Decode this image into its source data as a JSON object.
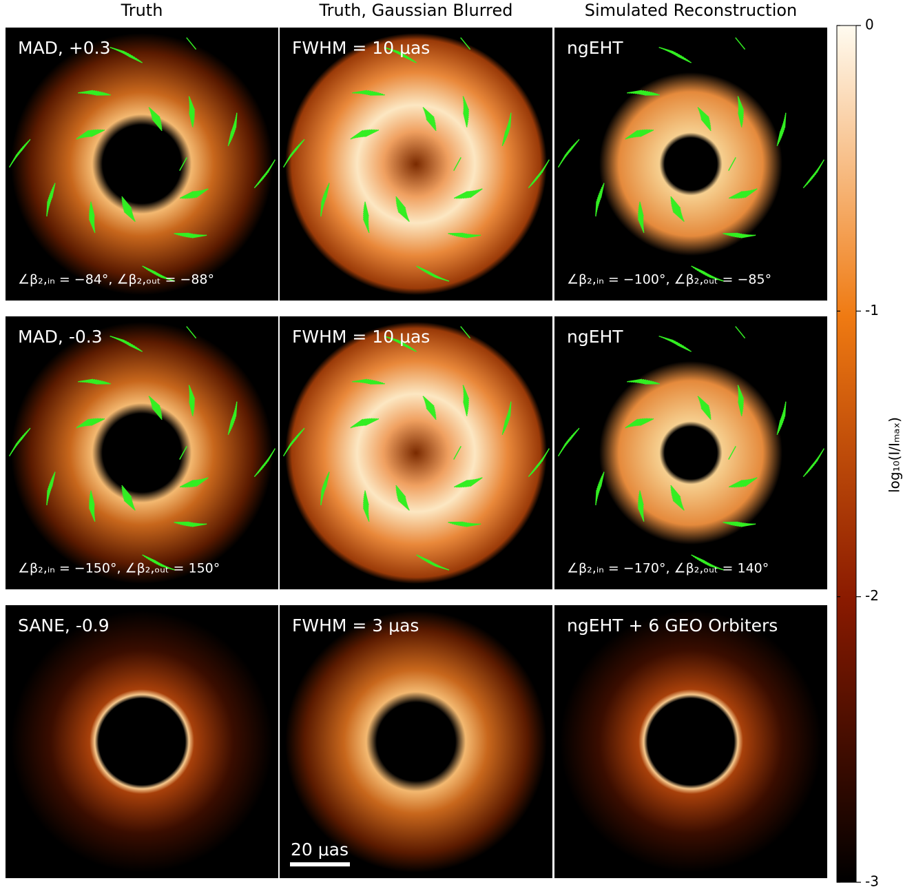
{
  "columns": [
    "Truth",
    "Truth, Gaussian Blurred",
    "Simulated Reconstruction"
  ],
  "rows": [
    {
      "panels": [
        {
          "label": "MAD, +0.3",
          "annotation": "∠β₂,ᵢₙ = −84°, ∠β₂,ₒᵤₜ = −88°"
        },
        {
          "label": "FWHM = 10 μas"
        },
        {
          "label": "ngEHT",
          "annotation": "∠β₂,ᵢₙ = −100°, ∠β₂,ₒᵤₜ = −85°"
        }
      ]
    },
    {
      "panels": [
        {
          "label": "MAD, -0.3",
          "annotation": "∠β₂,ᵢₙ = −150°, ∠β₂,ₒᵤₜ = 150°"
        },
        {
          "label": "FWHM = 10 μas"
        },
        {
          "label": "ngEHT",
          "annotation": "∠β₂,ᵢₙ = −170°, ∠β₂,ₒᵤₜ = 140°"
        }
      ]
    },
    {
      "panels": [
        {
          "label": "SANE, -0.9"
        },
        {
          "label": "FWHM = 3 μas",
          "scalebar": "20 μas"
        },
        {
          "label": "ngEHT + 6 GEO Orbiters"
        }
      ]
    }
  ],
  "colorbar": {
    "label": "log₁₀(I/Iₘₐₓ)",
    "lim": [
      0,
      -3
    ],
    "ticks": [
      0,
      -1,
      -2,
      -3
    ]
  }
}
